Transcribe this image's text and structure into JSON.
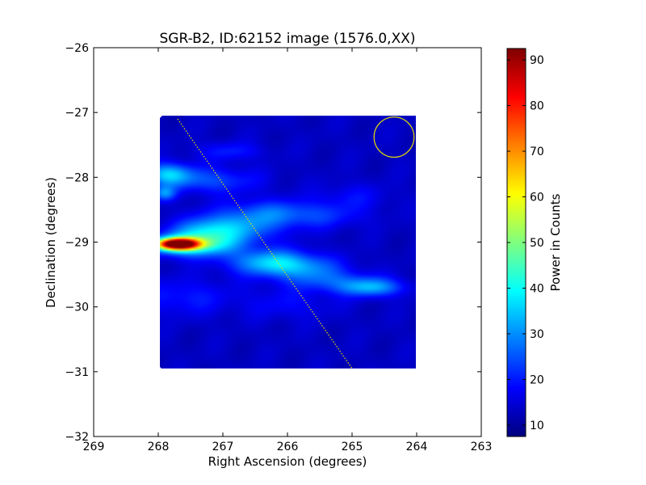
{
  "chart_data": {
    "type": "heatmap",
    "title": "SGR-B2, ID:62152 image (1576.0,XX)",
    "xlabel": "Right Ascension (degrees)",
    "ylabel": "Declination (degrees)",
    "xlim": [
      269,
      263
    ],
    "ylim": [
      -32,
      -26
    ],
    "x_ticks": [
      269,
      268,
      267,
      266,
      265,
      264,
      263
    ],
    "y_ticks": [
      -26,
      -27,
      -28,
      -29,
      -30,
      -31,
      -32
    ],
    "x_tick_labels": [
      "269",
      "268",
      "267",
      "266",
      "265",
      "264",
      "263"
    ],
    "y_tick_labels": [
      "−26",
      "−27",
      "−28",
      "−29",
      "−30",
      "−31",
      "−32"
    ],
    "image_extent": {
      "ra": [
        268.0,
        264.0
      ],
      "dec": [
        -30.95,
        -27.05
      ]
    },
    "background_level": 13,
    "features": [
      {
        "ra": 267.7,
        "dec": -29.03,
        "peak": 92,
        "sigma_ra": 0.22,
        "sigma_dec": 0.06
      },
      {
        "ra": 267.5,
        "dec": -29.05,
        "peak": 40,
        "sigma_ra": 0.45,
        "sigma_dec": 0.12
      },
      {
        "ra": 267.3,
        "dec": -28.85,
        "peak": 28,
        "sigma_ra": 0.35,
        "sigma_dec": 0.15
      },
      {
        "ra": 266.8,
        "dec": -28.8,
        "peak": 28,
        "sigma_ra": 0.45,
        "sigma_dec": 0.17
      },
      {
        "ra": 266.3,
        "dec": -29.3,
        "peak": 31,
        "sigma_ra": 0.45,
        "sigma_dec": 0.14
      },
      {
        "ra": 265.8,
        "dec": -29.4,
        "peak": 26,
        "sigma_ra": 0.45,
        "sigma_dec": 0.14
      },
      {
        "ra": 264.7,
        "dec": -29.7,
        "peak": 31,
        "sigma_ra": 0.35,
        "sigma_dec": 0.1
      },
      {
        "ra": 265.3,
        "dec": -29.6,
        "peak": 22,
        "sigma_ra": 0.45,
        "sigma_dec": 0.12
      },
      {
        "ra": 267.85,
        "dec": -27.95,
        "peak": 33,
        "sigma_ra": 0.25,
        "sigma_dec": 0.12
      },
      {
        "ra": 267.2,
        "dec": -28.05,
        "peak": 24,
        "sigma_ra": 0.5,
        "sigma_dec": 0.14
      },
      {
        "ra": 266.3,
        "dec": -28.55,
        "peak": 24,
        "sigma_ra": 0.5,
        "sigma_dec": 0.15
      },
      {
        "ra": 265.5,
        "dec": -28.6,
        "peak": 20,
        "sigma_ra": 0.5,
        "sigma_dec": 0.14
      },
      {
        "ra": 266.9,
        "dec": -27.6,
        "peak": 20,
        "sigma_ra": 0.35,
        "sigma_dec": 0.1
      },
      {
        "ra": 267.9,
        "dec": -28.25,
        "peak": 28,
        "sigma_ra": 0.12,
        "sigma_dec": 0.08
      },
      {
        "ra": 267.6,
        "dec": -29.85,
        "peak": 20,
        "sigma_ra": 0.5,
        "sigma_dec": 0.2
      },
      {
        "ra": 266.0,
        "dec": -29.95,
        "peak": 18,
        "sigma_ra": 0.5,
        "sigma_dec": 0.18
      },
      {
        "ra": 265.0,
        "dec": -28.3,
        "peak": 18,
        "sigma_ra": 0.4,
        "sigma_dec": 0.15
      }
    ],
    "galactic_plane_line": {
      "ra": [
        267.7,
        265.0
      ],
      "dec": [
        -27.1,
        -30.95
      ],
      "color": "#e8e000"
    },
    "beam_circle": {
      "ra": 264.35,
      "dec": -27.38,
      "radius_deg": 0.31,
      "color": "#e8e000"
    },
    "colorbar": {
      "label": "Power in Counts",
      "range": [
        7.5,
        92.5
      ],
      "ticks": [
        10,
        20,
        30,
        40,
        50,
        60,
        70,
        80,
        90
      ],
      "tick_labels": [
        "10",
        "20",
        "30",
        "40",
        "50",
        "60",
        "70",
        "80",
        "90"
      ],
      "colormap": "jet"
    },
    "grid": false,
    "legend": "none"
  }
}
